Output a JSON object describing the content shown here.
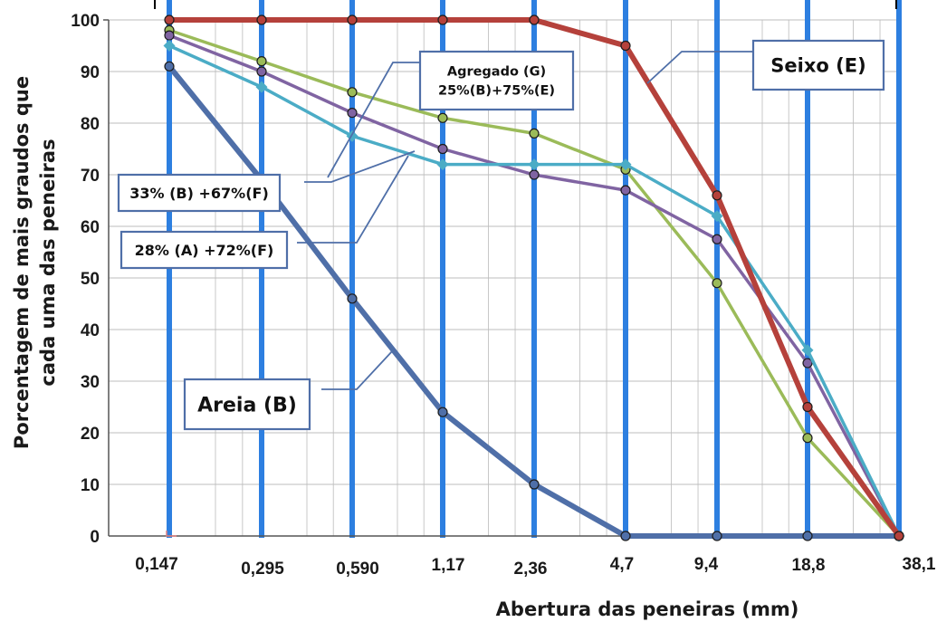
{
  "chart_data": {
    "type": "line",
    "title": "",
    "xlabel": "Abertura das peneiras (mm)",
    "ylabel_lines": [
      "Porcentagem  de mais graudos que",
      "cada uma das  peneiras"
    ],
    "x_tick_labels": [
      "0,147",
      "0,295",
      "0,590",
      "1,17",
      "2,36",
      "4,7",
      "9,4",
      "18,8",
      "38,1"
    ],
    "x_scale": "log",
    "ylim": [
      0,
      100
    ],
    "y_ticks": [
      0,
      10,
      20,
      30,
      40,
      50,
      60,
      70,
      80,
      90,
      100
    ],
    "grid": true,
    "series": [
      {
        "name": "Areia (B)",
        "color": "#4f6fa8",
        "marker": "circle",
        "values": [
          91,
          69,
          46,
          24,
          10,
          0,
          0,
          0,
          0
        ]
      },
      {
        "name": "Seixo (E)",
        "color": "#b5413b",
        "marker": "circle",
        "values": [
          100,
          100,
          100,
          100,
          100,
          95,
          66,
          25,
          0
        ]
      },
      {
        "name": "Agregado (G) 25%(B)+75%(E)",
        "color": "#9bbb59",
        "marker": "circle",
        "values": [
          98,
          92,
          86,
          81,
          78,
          71,
          49,
          19,
          0
        ]
      },
      {
        "name": "33% (B) +67%(F)",
        "color": "#8064a2",
        "marker": "circle",
        "values": [
          97,
          90,
          82,
          75,
          70,
          67,
          57.5,
          33.5,
          0
        ]
      },
      {
        "name": "28% (A) +72%(F)",
        "color": "#4bacc6",
        "marker": "diamond",
        "values": [
          95,
          87,
          77.5,
          72,
          72,
          72,
          62,
          36,
          0
        ]
      }
    ],
    "callouts": [
      {
        "id": "seixo",
        "lines": [
          "Seixo (E)"
        ]
      },
      {
        "id": "agregado",
        "lines": [
          "Agregado (G)",
          "25%(B)+75%(E)"
        ]
      },
      {
        "id": "b33",
        "lines": [
          "33% (B) +67%(F)"
        ]
      },
      {
        "id": "a28",
        "lines": [
          "28% (A) +72%(F)"
        ]
      },
      {
        "id": "areia",
        "lines": [
          "Areia (B)"
        ]
      }
    ]
  }
}
